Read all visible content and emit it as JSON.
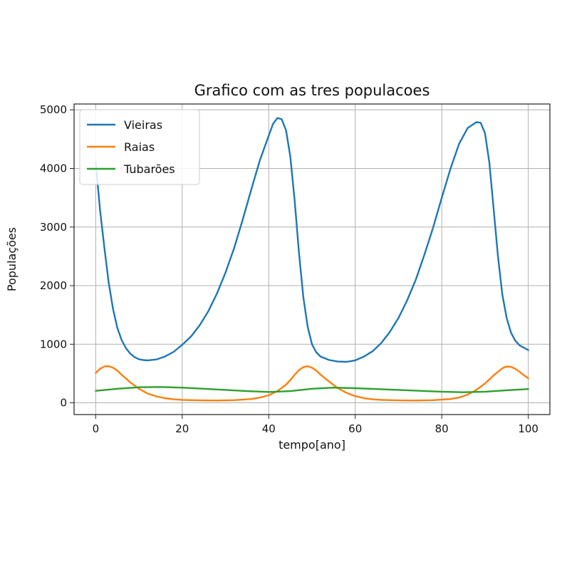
{
  "chart_data": {
    "type": "line",
    "title": "Grafico com as tres populacoes",
    "xlabel": "tempo[ano]",
    "ylabel": "Populações",
    "xlim": [
      -5,
      105
    ],
    "ylim": [
      -200,
      5100
    ],
    "xticks": [
      0,
      20,
      40,
      60,
      80,
      100
    ],
    "yticks": [
      0,
      1000,
      2000,
      3000,
      4000,
      5000
    ],
    "grid": true,
    "legend_position": "top-left",
    "series": [
      {
        "name": "Vieiras",
        "color": "#1f77b4",
        "points": [
          [
            0,
            4100
          ],
          [
            1,
            3300
          ],
          [
            2,
            2650
          ],
          [
            3,
            2050
          ],
          [
            4,
            1600
          ],
          [
            5,
            1280
          ],
          [
            6,
            1070
          ],
          [
            7,
            930
          ],
          [
            8,
            840
          ],
          [
            9,
            780
          ],
          [
            10,
            745
          ],
          [
            11,
            730
          ],
          [
            12,
            725
          ],
          [
            14,
            740
          ],
          [
            16,
            790
          ],
          [
            18,
            870
          ],
          [
            20,
            990
          ],
          [
            22,
            1130
          ],
          [
            24,
            1320
          ],
          [
            26,
            1560
          ],
          [
            28,
            1860
          ],
          [
            30,
            2220
          ],
          [
            32,
            2640
          ],
          [
            34,
            3130
          ],
          [
            36,
            3650
          ],
          [
            38,
            4150
          ],
          [
            40,
            4560
          ],
          [
            41,
            4760
          ],
          [
            42,
            4860
          ],
          [
            43,
            4840
          ],
          [
            44,
            4650
          ],
          [
            45,
            4200
          ],
          [
            46,
            3450
          ],
          [
            47,
            2550
          ],
          [
            48,
            1800
          ],
          [
            49,
            1300
          ],
          [
            50,
            1000
          ],
          [
            51,
            860
          ],
          [
            52,
            790
          ],
          [
            54,
            730
          ],
          [
            56,
            705
          ],
          [
            58,
            700
          ],
          [
            60,
            725
          ],
          [
            62,
            790
          ],
          [
            64,
            880
          ],
          [
            66,
            1020
          ],
          [
            68,
            1210
          ],
          [
            70,
            1450
          ],
          [
            72,
            1750
          ],
          [
            74,
            2100
          ],
          [
            76,
            2530
          ],
          [
            78,
            2990
          ],
          [
            80,
            3500
          ],
          [
            82,
            3990
          ],
          [
            84,
            4420
          ],
          [
            86,
            4690
          ],
          [
            88,
            4790
          ],
          [
            89,
            4780
          ],
          [
            90,
            4600
          ],
          [
            91,
            4100
          ],
          [
            92,
            3300
          ],
          [
            93,
            2500
          ],
          [
            94,
            1850
          ],
          [
            95,
            1450
          ],
          [
            96,
            1200
          ],
          [
            97,
            1060
          ],
          [
            98,
            980
          ],
          [
            99,
            940
          ],
          [
            100,
            900
          ]
        ]
      },
      {
        "name": "Raias",
        "color": "#ff7f0e",
        "points": [
          [
            0,
            510
          ],
          [
            1,
            580
          ],
          [
            2,
            620
          ],
          [
            3,
            625
          ],
          [
            4,
            600
          ],
          [
            5,
            550
          ],
          [
            6,
            480
          ],
          [
            8,
            350
          ],
          [
            10,
            240
          ],
          [
            12,
            160
          ],
          [
            14,
            110
          ],
          [
            16,
            80
          ],
          [
            18,
            60
          ],
          [
            20,
            50
          ],
          [
            24,
            42
          ],
          [
            28,
            40
          ],
          [
            32,
            45
          ],
          [
            36,
            65
          ],
          [
            38,
            90
          ],
          [
            40,
            130
          ],
          [
            42,
            200
          ],
          [
            44,
            310
          ],
          [
            45,
            390
          ],
          [
            46,
            480
          ],
          [
            47,
            560
          ],
          [
            48,
            610
          ],
          [
            49,
            625
          ],
          [
            50,
            600
          ],
          [
            51,
            550
          ],
          [
            52,
            480
          ],
          [
            54,
            360
          ],
          [
            56,
            250
          ],
          [
            58,
            170
          ],
          [
            60,
            115
          ],
          [
            62,
            80
          ],
          [
            64,
            60
          ],
          [
            66,
            50
          ],
          [
            70,
            42
          ],
          [
            74,
            40
          ],
          [
            78,
            45
          ],
          [
            82,
            65
          ],
          [
            84,
            90
          ],
          [
            86,
            140
          ],
          [
            88,
            220
          ],
          [
            90,
            330
          ],
          [
            92,
            470
          ],
          [
            94,
            590
          ],
          [
            95,
            620
          ],
          [
            96,
            615
          ],
          [
            97,
            580
          ],
          [
            98,
            530
          ],
          [
            99,
            470
          ],
          [
            100,
            420
          ]
        ]
      },
      {
        "name": "Tubarões",
        "color": "#2ca02c",
        "points": [
          [
            0,
            205
          ],
          [
            5,
            240
          ],
          [
            10,
            265
          ],
          [
            15,
            270
          ],
          [
            20,
            260
          ],
          [
            25,
            240
          ],
          [
            30,
            220
          ],
          [
            35,
            200
          ],
          [
            40,
            185
          ],
          [
            45,
            200
          ],
          [
            50,
            240
          ],
          [
            55,
            260
          ],
          [
            60,
            250
          ],
          [
            65,
            235
          ],
          [
            70,
            220
          ],
          [
            75,
            205
          ],
          [
            80,
            190
          ],
          [
            85,
            180
          ],
          [
            90,
            190
          ],
          [
            95,
            215
          ],
          [
            100,
            235
          ]
        ]
      }
    ]
  }
}
